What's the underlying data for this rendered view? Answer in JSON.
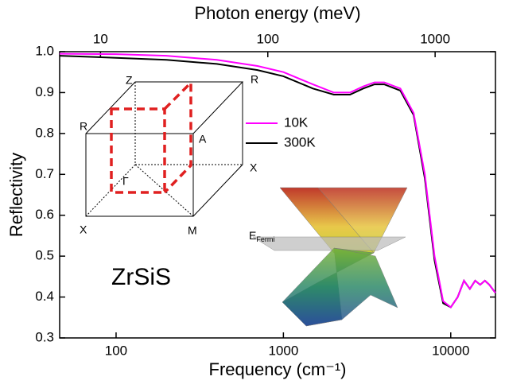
{
  "chart_data": {
    "type": "line",
    "xlabel": "Frequency (cm⁻¹)",
    "ylabel": "Reflectivity",
    "x2label": "Photon energy (meV)",
    "xscale": "log",
    "x2scale": "log",
    "xlim": [
      46,
      18500
    ],
    "xticks": [
      100,
      1000,
      10000
    ],
    "x2lim": [
      5.7,
      2294
    ],
    "x2ticks": [
      10,
      100,
      1000
    ],
    "ylim": [
      0.3,
      1.0
    ],
    "yticks": [
      0.3,
      0.4,
      0.5,
      0.6,
      0.7,
      0.8,
      0.9,
      {
        "value": 1.0,
        "label": "1.0"
      }
    ],
    "legend": "upper center",
    "x": [
      46,
      100,
      200,
      400,
      700,
      1000,
      1500,
      2000,
      2500,
      3000,
      3500,
      4000,
      5000,
      6000,
      7000,
      8000,
      9000,
      10000,
      11000,
      12000,
      13000,
      14000,
      15000,
      16000,
      17000,
      18500
    ],
    "series": [
      {
        "name": "10K",
        "color": "#ff00ff",
        "values": [
          0.995,
          0.994,
          0.99,
          0.98,
          0.965,
          0.95,
          0.92,
          0.9,
          0.9,
          0.915,
          0.925,
          0.925,
          0.91,
          0.85,
          0.7,
          0.5,
          0.39,
          0.375,
          0.4,
          0.44,
          0.42,
          0.44,
          0.43,
          0.44,
          0.43,
          0.41
        ]
      },
      {
        "name": "300K",
        "color": "#000000",
        "values": [
          0.99,
          0.985,
          0.98,
          0.97,
          0.955,
          0.94,
          0.91,
          0.895,
          0.895,
          0.91,
          0.92,
          0.92,
          0.905,
          0.845,
          0.69,
          0.49,
          0.385,
          0.375,
          0.4,
          0.44,
          0.42,
          0.44,
          0.43,
          0.44,
          0.43,
          0.41
        ]
      }
    ],
    "sample": "ZrSiS",
    "zone_labels": [
      "Z",
      "R",
      "R",
      "A",
      "Γ",
      "X",
      "X",
      "M"
    ],
    "fermi_label": {
      "main": "E",
      "sub": "Fermi"
    }
  }
}
